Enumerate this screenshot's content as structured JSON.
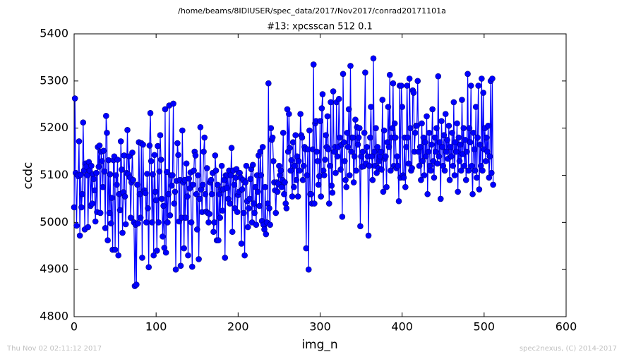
{
  "chart_data": {
    "type": "line",
    "suptitle": "/home/beams/8IDIUSER/spec_data/2017/Nov2017/conrad20171101a",
    "title": "#13: xpcsscan 512 0.1",
    "xlabel": "img_n",
    "ylabel": "ccdc",
    "footer_left": "Thu Nov 02 02:11:12 2017",
    "footer_right": "spec2nexus, (C) 2014-2017",
    "xlim": [
      0,
      600
    ],
    "xticks": [
      0,
      100,
      200,
      300,
      400,
      500,
      600
    ],
    "ylim": [
      4800,
      5400
    ],
    "yticks": [
      4800,
      4900,
      5000,
      5100,
      5200,
      5300,
      5400
    ],
    "grid": false,
    "marker": "circle",
    "x": [
      0,
      1,
      2,
      3,
      4,
      5,
      6,
      7,
      8,
      9,
      10,
      11,
      12,
      13,
      14,
      15,
      16,
      17,
      18,
      19,
      20,
      21,
      22,
      23,
      24,
      25,
      26,
      27,
      28,
      29,
      30,
      31,
      32,
      33,
      34,
      35,
      36,
      37,
      38,
      39,
      40,
      41,
      42,
      43,
      44,
      45,
      46,
      47,
      48,
      49,
      50,
      51,
      52,
      53,
      54,
      55,
      56,
      57,
      58,
      59,
      60,
      61,
      62,
      63,
      64,
      65,
      66,
      67,
      68,
      69,
      70,
      71,
      72,
      73,
      74,
      75,
      76,
      77,
      78,
      79,
      80,
      81,
      82,
      83,
      84,
      85,
      86,
      87,
      88,
      89,
      90,
      91,
      92,
      93,
      94,
      95,
      96,
      97,
      98,
      99,
      100,
      101,
      102,
      103,
      104,
      105,
      106,
      107,
      108,
      109,
      110,
      111,
      112,
      113,
      114,
      115,
      116,
      117,
      118,
      119,
      120,
      121,
      122,
      123,
      124,
      125,
      126,
      127,
      128,
      129,
      130,
      131,
      132,
      133,
      134,
      135,
      136,
      137,
      138,
      139,
      140,
      141,
      142,
      143,
      144,
      145,
      146,
      147,
      148,
      149,
      150,
      151,
      152,
      153,
      154,
      155,
      156,
      157,
      158,
      159,
      160,
      161,
      162,
      163,
      164,
      165,
      166,
      167,
      168,
      169,
      170,
      171,
      172,
      173,
      174,
      175,
      176,
      177,
      178,
      179,
      180,
      181,
      182,
      183,
      184,
      185,
      186,
      187,
      188,
      189,
      190,
      191,
      192,
      193,
      194,
      195,
      196,
      197,
      198,
      199,
      200,
      201,
      202,
      203,
      204,
      205,
      206,
      207,
      208,
      209,
      210,
      211,
      212,
      213,
      214,
      215,
      216,
      217,
      218,
      219,
      220,
      221,
      222,
      223,
      224,
      225,
      226,
      227,
      228,
      229,
      230,
      231,
      232,
      233,
      234,
      235,
      236,
      237,
      238,
      239,
      240,
      241,
      242,
      243,
      244,
      245,
      246,
      247,
      248,
      249,
      250,
      251,
      252,
      253,
      254,
      255,
      256,
      257,
      258,
      259,
      260,
      261,
      262,
      263,
      264,
      265,
      266,
      267,
      268,
      269,
      270,
      271,
      272,
      273,
      274,
      275,
      276,
      277,
      278,
      279,
      280,
      281,
      282,
      283,
      284,
      285,
      286,
      287,
      288,
      289,
      290,
      291,
      292,
      293,
      294,
      295,
      296,
      297,
      298,
      299,
      300,
      301,
      302,
      303,
      304,
      305,
      306,
      307,
      308,
      309,
      310,
      311,
      312,
      313,
      314,
      315,
      316,
      317,
      318,
      319,
      320,
      321,
      322,
      323,
      324,
      325,
      326,
      327,
      328,
      329,
      330,
      331,
      332,
      333,
      334,
      335,
      336,
      337,
      338,
      339,
      340,
      341,
      342,
      343,
      344,
      345,
      346,
      347,
      348,
      349,
      350,
      351,
      352,
      353,
      354,
      355,
      356,
      357,
      358,
      359,
      360,
      361,
      362,
      363,
      364,
      365,
      366,
      367,
      368,
      369,
      370,
      371,
      372,
      373,
      374,
      375,
      376,
      377,
      378,
      379,
      380,
      381,
      382,
      383,
      384,
      385,
      386,
      387,
      388,
      389,
      390,
      391,
      392,
      393,
      394,
      395,
      396,
      397,
      398,
      399,
      400,
      401,
      402,
      403,
      404,
      405,
      406,
      407,
      408,
      409,
      410,
      411,
      412,
      413,
      414,
      415,
      416,
      417,
      418,
      419,
      420,
      421,
      422,
      423,
      424,
      425,
      426,
      427,
      428,
      429,
      430,
      431,
      432,
      433,
      434,
      435,
      436,
      437,
      438,
      439,
      440,
      441,
      442,
      443,
      444,
      445,
      446,
      447,
      448,
      449,
      450,
      451,
      452,
      453,
      454,
      455,
      456,
      457,
      458,
      459,
      460,
      461,
      462,
      463,
      464,
      465,
      466,
      467,
      468,
      469,
      470,
      471,
      472,
      473,
      474,
      475,
      476,
      477,
      478,
      479,
      480,
      481,
      482,
      483,
      484,
      485,
      486,
      487,
      488,
      489,
      490,
      491,
      492,
      493,
      494,
      495,
      496,
      497,
      498,
      499,
      500,
      501,
      502,
      503,
      504,
      505,
      506,
      507,
      508,
      509,
      510,
      511
    ],
    "series": [
      {
        "name": "ccdc",
        "color": "#0000ff",
        "values": [
          5032,
          5263,
          5105,
          4993,
          5100,
          5098,
          5172,
          4972,
          5101,
          5032,
          5060,
          5212,
          5110,
          4985,
          5125,
          5118,
          5100,
          4990,
          5128,
          5110,
          5035,
          5120,
          5040,
          5102,
          5092,
          5068,
          5002,
          5105,
          5022,
          5160,
          5118,
          5163,
          5020,
          5150,
          5130,
          5075,
          5152,
          5108,
          4988,
          5226,
          5190,
          4962,
          5132,
          5020,
          5102,
          4998,
          5052,
          4942,
          5132,
          5140,
          4942,
          5100,
          5080,
          5133,
          4930,
          5060,
          5026,
          5172,
          5112,
          4978,
          5064,
          5142,
          5055,
          4996,
          5105,
          5196,
          5102,
          5140,
          5095,
          5010,
          5085,
          5148,
          5090,
          5000,
          4865,
          4995,
          4868,
          5080,
          4998,
          5170,
          5060,
          5010,
          5168,
          4925,
          5165,
          5066,
          5068,
          5062,
          5000,
          5103,
          5030,
          4905,
          5163,
          5232,
          5130,
          5000,
          5102,
          4930,
          5143,
          5065,
          5047,
          4940,
          5162,
          5000,
          5108,
          5185,
          5133,
          5050,
          4970,
          5035,
          4946,
          5240,
          4936,
          5107,
          5000,
          5060,
          5248,
          5015,
          5100,
          5078,
          5100,
          5252,
          5040,
          5065,
          4900,
          5088,
          5168,
          5143,
          5002,
          5090,
          4908,
          5010,
          5195,
          5085,
          4945,
          5090,
          5010,
          5125,
          5055,
          4930,
          5093,
          5072,
          5106,
          5000,
          4906,
          5080,
          5110,
          5150,
          5142,
          5060,
          4985,
          5100,
          4922,
          5050,
          5202,
          5070,
          5022,
          5080,
          5150,
          5180,
          5060,
          5023,
          5115,
          5020,
          5000,
          5018,
          5085,
          5090,
          5060,
          5105,
          4980,
          5000,
          5142,
          5110,
          4962,
          5080,
          4962,
          5060,
          5010,
          5070,
          5120,
          5025,
          5070,
          5090,
          4925,
          5100,
          5073,
          5100,
          5050,
          5110,
          5040,
          5100,
          5158,
          4980,
          5110,
          5080,
          5030,
          5095,
          5113,
          5022,
          5058,
          5065,
          5105,
          5095,
          4955,
          5070,
          5090,
          5020,
          4930,
          5085,
          5120,
          5045,
          4990,
          5030,
          5050,
          5092,
          5113,
          5000,
          5122,
          5040,
          5020,
          5075,
          4995,
          5100,
          5065,
          5142,
          5035,
          5150,
          5100,
          5003,
          5160,
          4995,
          4985,
          5075,
          4975,
          5000,
          5040,
          5295,
          5030,
          4995,
          5200,
          5175,
          5180,
          5130,
          5085,
          5068,
          5020,
          5085,
          5065,
          5082,
          5120,
          5100,
          5110,
          5075,
          5090,
          5190,
          5060,
          5085,
          5040,
          5030,
          5240,
          5150,
          5230,
          5158,
          5110,
          5132,
          5055,
          5170,
          5075,
          5120,
          5185,
          5090,
          5140,
          5055,
          5130,
          5110,
          5230,
          5185,
          5180,
          5090,
          5120,
          5160,
          5155,
          4945,
          5100,
          5155,
          4900,
          5195,
          5060,
          5060,
          5040,
          5155,
          5335,
          5040,
          5210,
          5215,
          5150,
          5130,
          5080,
          5098,
          5215,
          5055,
          5242,
          5272,
          5110,
          5100,
          5133,
          5185,
          5160,
          5225,
          5155,
          5040,
          5120,
          5255,
          5078,
          5063,
          5278,
          5150,
          5160,
          5105,
          5255,
          5140,
          5160,
          5262,
          5180,
          5112,
          5165,
          5012,
          5315,
          5170,
          5130,
          5090,
          5075,
          5190,
          5160,
          5240,
          5100,
          5332,
          5150,
          5180,
          5180,
          5085,
          5140,
          5218,
          5110,
          5202,
          5165,
          5180,
          5200,
          4992,
          5140,
          5118,
          5150,
          5119,
          5190,
          5318,
          5125,
          5160,
          5140,
          4972,
          5120,
          5180,
          5245,
          5140,
          5090,
          5348,
          5150,
          5120,
          5200,
          5105,
          5160,
          5115,
          5130,
          5140,
          5150,
          5112,
          5260,
          5065,
          5195,
          5135,
          5140,
          5075,
          5170,
          5245,
          5160,
          5313,
          5110,
          5180,
          5200,
          5295,
          5120,
          5210,
          5180,
          5115,
          5140,
          5120,
          5045,
          5290,
          5095,
          5290,
          5245,
          5100,
          5095,
          5180,
          5075,
          5160,
          5290,
          5180,
          5125,
          5305,
          5200,
          5110,
          5115,
          5280,
          5275,
          5150,
          5190,
          5205,
          5205,
          5300,
          5150,
          5120,
          5160,
          5090,
          5210,
          5130,
          5180,
          5100,
          5170,
          5140,
          5225,
          5060,
          5150,
          5190,
          5120,
          5110,
          5165,
          5240,
          5130,
          5095,
          5180,
          5150,
          5200,
          5125,
          5310,
          5140,
          5170,
          5050,
          5215,
          5160,
          5120,
          5185,
          5110,
          5230,
          5150,
          5175,
          5135,
          5205,
          5090,
          5160,
          5140,
          5190,
          5120,
          5255,
          5100,
          5170,
          5150,
          5210,
          5065,
          5180,
          5130,
          5165,
          5110,
          5260,
          5145,
          5200,
          5120,
          5175,
          5090,
          5150,
          5315,
          5110,
          5200,
          5170,
          5290,
          5120,
          5060,
          5190,
          5155,
          5110,
          5245,
          5095,
          5180,
          5290,
          5070,
          5165,
          5120,
          5305,
          5110,
          5275,
          5155,
          5200,
          5130,
          5180,
          5150,
          5205,
          5095,
          5140,
          5300,
          5105,
          5305,
          5080
        ]
      }
    ]
  }
}
